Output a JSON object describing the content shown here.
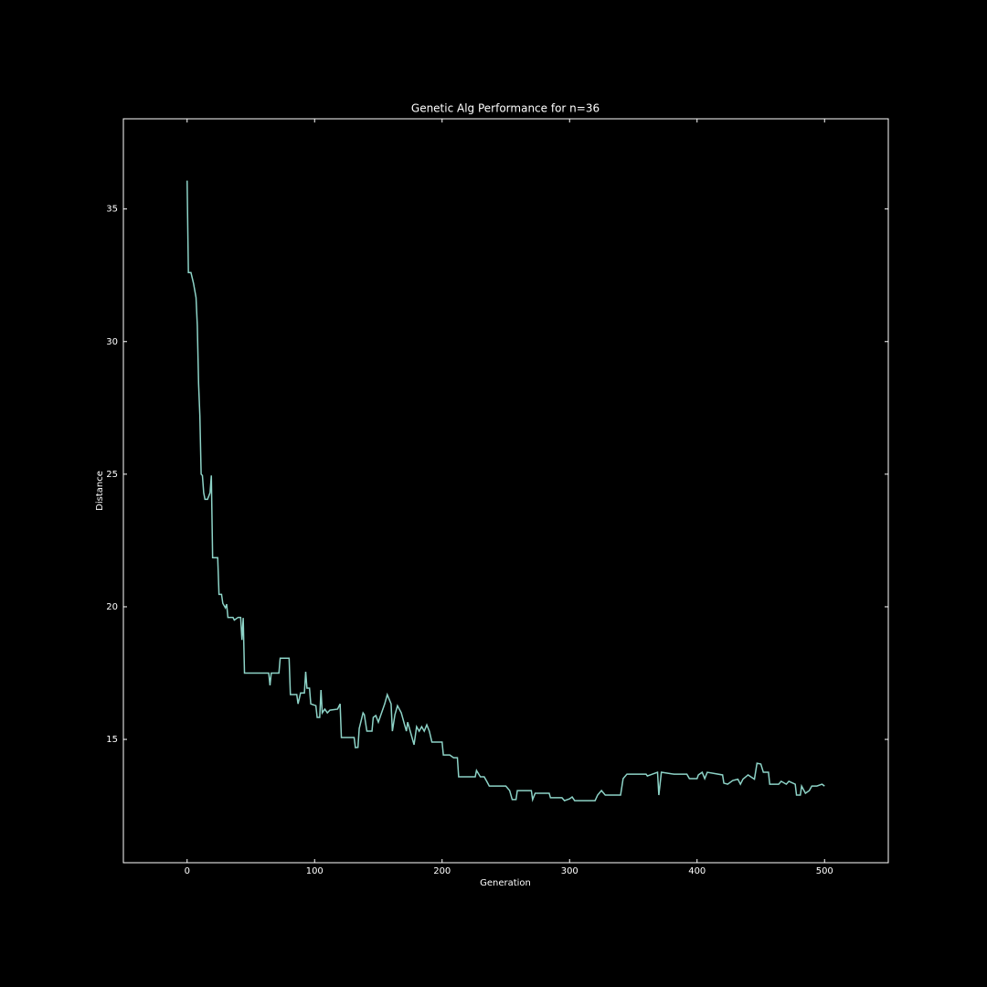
{
  "chart_data": {
    "type": "line",
    "title": "Genetic Alg Performance for n=36",
    "x_label": "Generation",
    "y_label": "Distance",
    "xlim": [
      -50,
      550
    ],
    "ylim": [
      10.35,
      38.4
    ],
    "xticks": [
      0,
      100,
      200,
      300,
      400,
      500
    ],
    "yticks": [
      15,
      20,
      25,
      30,
      35
    ],
    "series": [
      {
        "name": "Distance",
        "color": "#8dd3c7",
        "x": [
          0,
          1,
          3,
          5,
          7,
          8,
          9,
          10,
          11,
          12,
          13,
          14,
          16,
          18,
          19,
          20,
          24,
          25,
          27,
          28,
          30,
          31,
          32,
          36,
          37,
          40,
          42,
          43,
          44,
          45,
          64,
          65,
          66,
          72,
          73,
          80,
          81,
          86,
          87,
          89,
          92,
          93,
          94,
          96,
          97,
          101,
          102,
          104,
          105,
          106,
          108,
          110,
          112,
          118,
          120,
          121,
          131,
          132,
          134,
          135,
          138,
          139,
          141,
          145,
          146,
          148,
          150,
          152,
          155,
          157,
          160,
          161,
          163,
          165,
          168,
          170,
          172,
          173,
          176,
          178,
          180,
          182,
          184,
          186,
          188,
          190,
          192,
          200,
          201,
          206,
          209,
          212,
          213,
          226,
          227,
          230,
          233,
          235,
          237,
          250,
          253,
          255,
          258,
          259,
          270,
          271,
          273,
          284,
          285,
          294,
          296,
          300,
          302,
          304,
          320,
          322,
          325,
          328,
          340,
          342,
          345,
          360,
          361,
          365,
          369,
          370,
          372,
          380,
          382,
          392,
          394,
          400,
          401,
          404,
          406,
          408,
          420,
          421,
          424,
          428,
          432,
          434,
          436,
          440,
          445,
          447,
          450,
          452,
          456,
          457,
          464,
          466,
          470,
          472,
          477,
          478,
          481,
          482,
          485,
          488,
          490,
          494,
          498,
          500
        ],
        "values": [
          36.07,
          32.6,
          32.6,
          32.2,
          31.66,
          30.6,
          28.4,
          27.2,
          25.0,
          24.95,
          24.3,
          24.05,
          24.05,
          24.3,
          24.95,
          21.85,
          21.85,
          20.47,
          20.47,
          20.13,
          19.96,
          20.1,
          19.6,
          19.6,
          19.5,
          19.6,
          19.6,
          18.75,
          19.58,
          17.5,
          17.5,
          17.04,
          17.5,
          17.5,
          18.06,
          18.06,
          16.69,
          16.69,
          16.34,
          16.75,
          16.75,
          17.55,
          16.93,
          16.93,
          16.34,
          16.27,
          15.83,
          15.83,
          16.86,
          16.0,
          16.14,
          16.0,
          16.1,
          16.14,
          16.34,
          15.07,
          15.07,
          14.69,
          14.7,
          15.41,
          16.0,
          15.93,
          15.31,
          15.31,
          15.83,
          15.9,
          15.65,
          15.93,
          16.34,
          16.69,
          16.34,
          15.31,
          15.93,
          16.27,
          16.0,
          15.65,
          15.31,
          15.65,
          15.14,
          14.8,
          15.48,
          15.31,
          15.48,
          15.31,
          15.55,
          15.31,
          14.9,
          14.9,
          14.41,
          14.41,
          14.31,
          14.31,
          13.59,
          13.59,
          13.83,
          13.59,
          13.59,
          13.42,
          13.24,
          13.24,
          13.07,
          12.73,
          12.73,
          13.07,
          13.07,
          12.73,
          12.97,
          12.97,
          12.8,
          12.8,
          12.69,
          12.76,
          12.83,
          12.69,
          12.69,
          12.9,
          13.07,
          12.9,
          12.9,
          13.52,
          13.69,
          13.69,
          13.62,
          13.69,
          13.76,
          12.9,
          13.76,
          13.7,
          13.69,
          13.69,
          13.52,
          13.52,
          13.66,
          13.76,
          13.52,
          13.76,
          13.66,
          13.35,
          13.31,
          13.45,
          13.5,
          13.31,
          13.5,
          13.66,
          13.5,
          14.1,
          14.07,
          13.76,
          13.76,
          13.31,
          13.31,
          13.42,
          13.31,
          13.42,
          13.31,
          12.9,
          12.9,
          13.24,
          12.97,
          13.07,
          13.24,
          13.24,
          13.31,
          13.24
        ]
      }
    ]
  }
}
